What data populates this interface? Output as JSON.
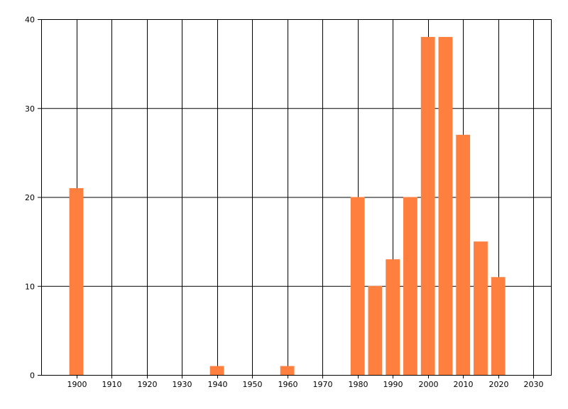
{
  "chart_data": {
    "type": "bar",
    "title": "",
    "xlabel": "",
    "ylabel": "",
    "x": [
      1900,
      1940,
      1960,
      1980,
      1985,
      1990,
      1995,
      2000,
      2005,
      2010,
      2015,
      2020
    ],
    "values": [
      21,
      1,
      1,
      20,
      10,
      13,
      20,
      38,
      38,
      27,
      15,
      11
    ],
    "bar_width": 4,
    "xlim": [
      1890,
      2035
    ],
    "ylim": [
      0,
      40
    ],
    "x_ticks": [
      1900,
      1910,
      1920,
      1930,
      1940,
      1950,
      1960,
      1970,
      1980,
      1990,
      2000,
      2010,
      2020,
      2030
    ],
    "y_ticks": [
      0,
      10,
      20,
      30,
      40
    ],
    "grid": true,
    "legend": "none"
  },
  "colors": {
    "bar": "#FF7F3F",
    "grid": "#000000",
    "axis": "#000000",
    "background": "#FFFFFF"
  }
}
